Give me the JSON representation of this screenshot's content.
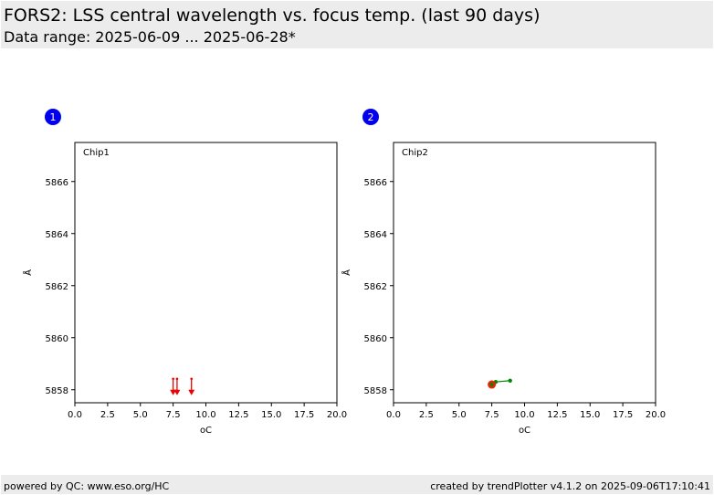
{
  "header": {
    "title": "FORS2: LSS central wavelength vs. focus temp. (last 90 days)",
    "subtitle": "Data range: 2025-06-09 ... 2025-06-28*"
  },
  "footer": {
    "left": "powered by QC: www.eso.org/HC",
    "right": "created by trendPlotter v4.1.2 on 2025-09-06T17:10:41"
  },
  "colors": {
    "header_bg": "#ececec",
    "badge": "#0000ee",
    "chip1_marker": "#ee0000",
    "chip2_marker": "#ee2200",
    "chip2_line": "#008800"
  },
  "chart_data": [
    {
      "type": "scatter",
      "badge": "1",
      "panel_label": "Chip1",
      "xlabel": "oC",
      "ylabel": "Å",
      "xlim": [
        0,
        20
      ],
      "ylim": [
        5857.5,
        5867.5
      ],
      "xticks": [
        0,
        2.5,
        5,
        7.5,
        10,
        12.5,
        15,
        17.5,
        20
      ],
      "xtick_labels": [
        "0.0",
        "2.5",
        "5.0",
        "7.5",
        "10.0",
        "12.5",
        "15.0",
        "17.5",
        "20.0"
      ],
      "yticks": [
        5858,
        5860,
        5862,
        5864,
        5866
      ],
      "ytick_labels": [
        "5858",
        "5860",
        "5862",
        "5864",
        "5866"
      ],
      "grid": false,
      "marker": "arrow-down",
      "note": "",
      "points": [
        {
          "x": 7.5,
          "y": 5858.0
        },
        {
          "x": 7.8,
          "y": 5858.0
        },
        {
          "x": 8.9,
          "y": 5858.0
        }
      ]
    },
    {
      "type": "line",
      "badge": "2",
      "panel_label": "Chip2",
      "xlabel": "oC",
      "ylabel": "Å",
      "xlim": [
        0,
        20
      ],
      "ylim": [
        5857.5,
        5867.5
      ],
      "xticks": [
        0,
        2.5,
        5,
        7.5,
        10,
        12.5,
        15,
        17.5,
        20
      ],
      "xtick_labels": [
        "0.0",
        "2.5",
        "5.0",
        "7.5",
        "10.0",
        "12.5",
        "15.0",
        "17.5",
        "20.0"
      ],
      "yticks": [
        5858,
        5860,
        5862,
        5864,
        5866
      ],
      "ytick_labels": [
        "5858",
        "5860",
        "5862",
        "5864",
        "5866"
      ],
      "grid": false,
      "series": [
        {
          "points": [
            {
              "x": 7.5,
              "y": 5858.2
            },
            {
              "x": 7.8,
              "y": 5858.3
            },
            {
              "x": 8.9,
              "y": 5858.35
            }
          ]
        }
      ],
      "highlight": {
        "x": 7.5,
        "y": 5858.2
      }
    }
  ]
}
